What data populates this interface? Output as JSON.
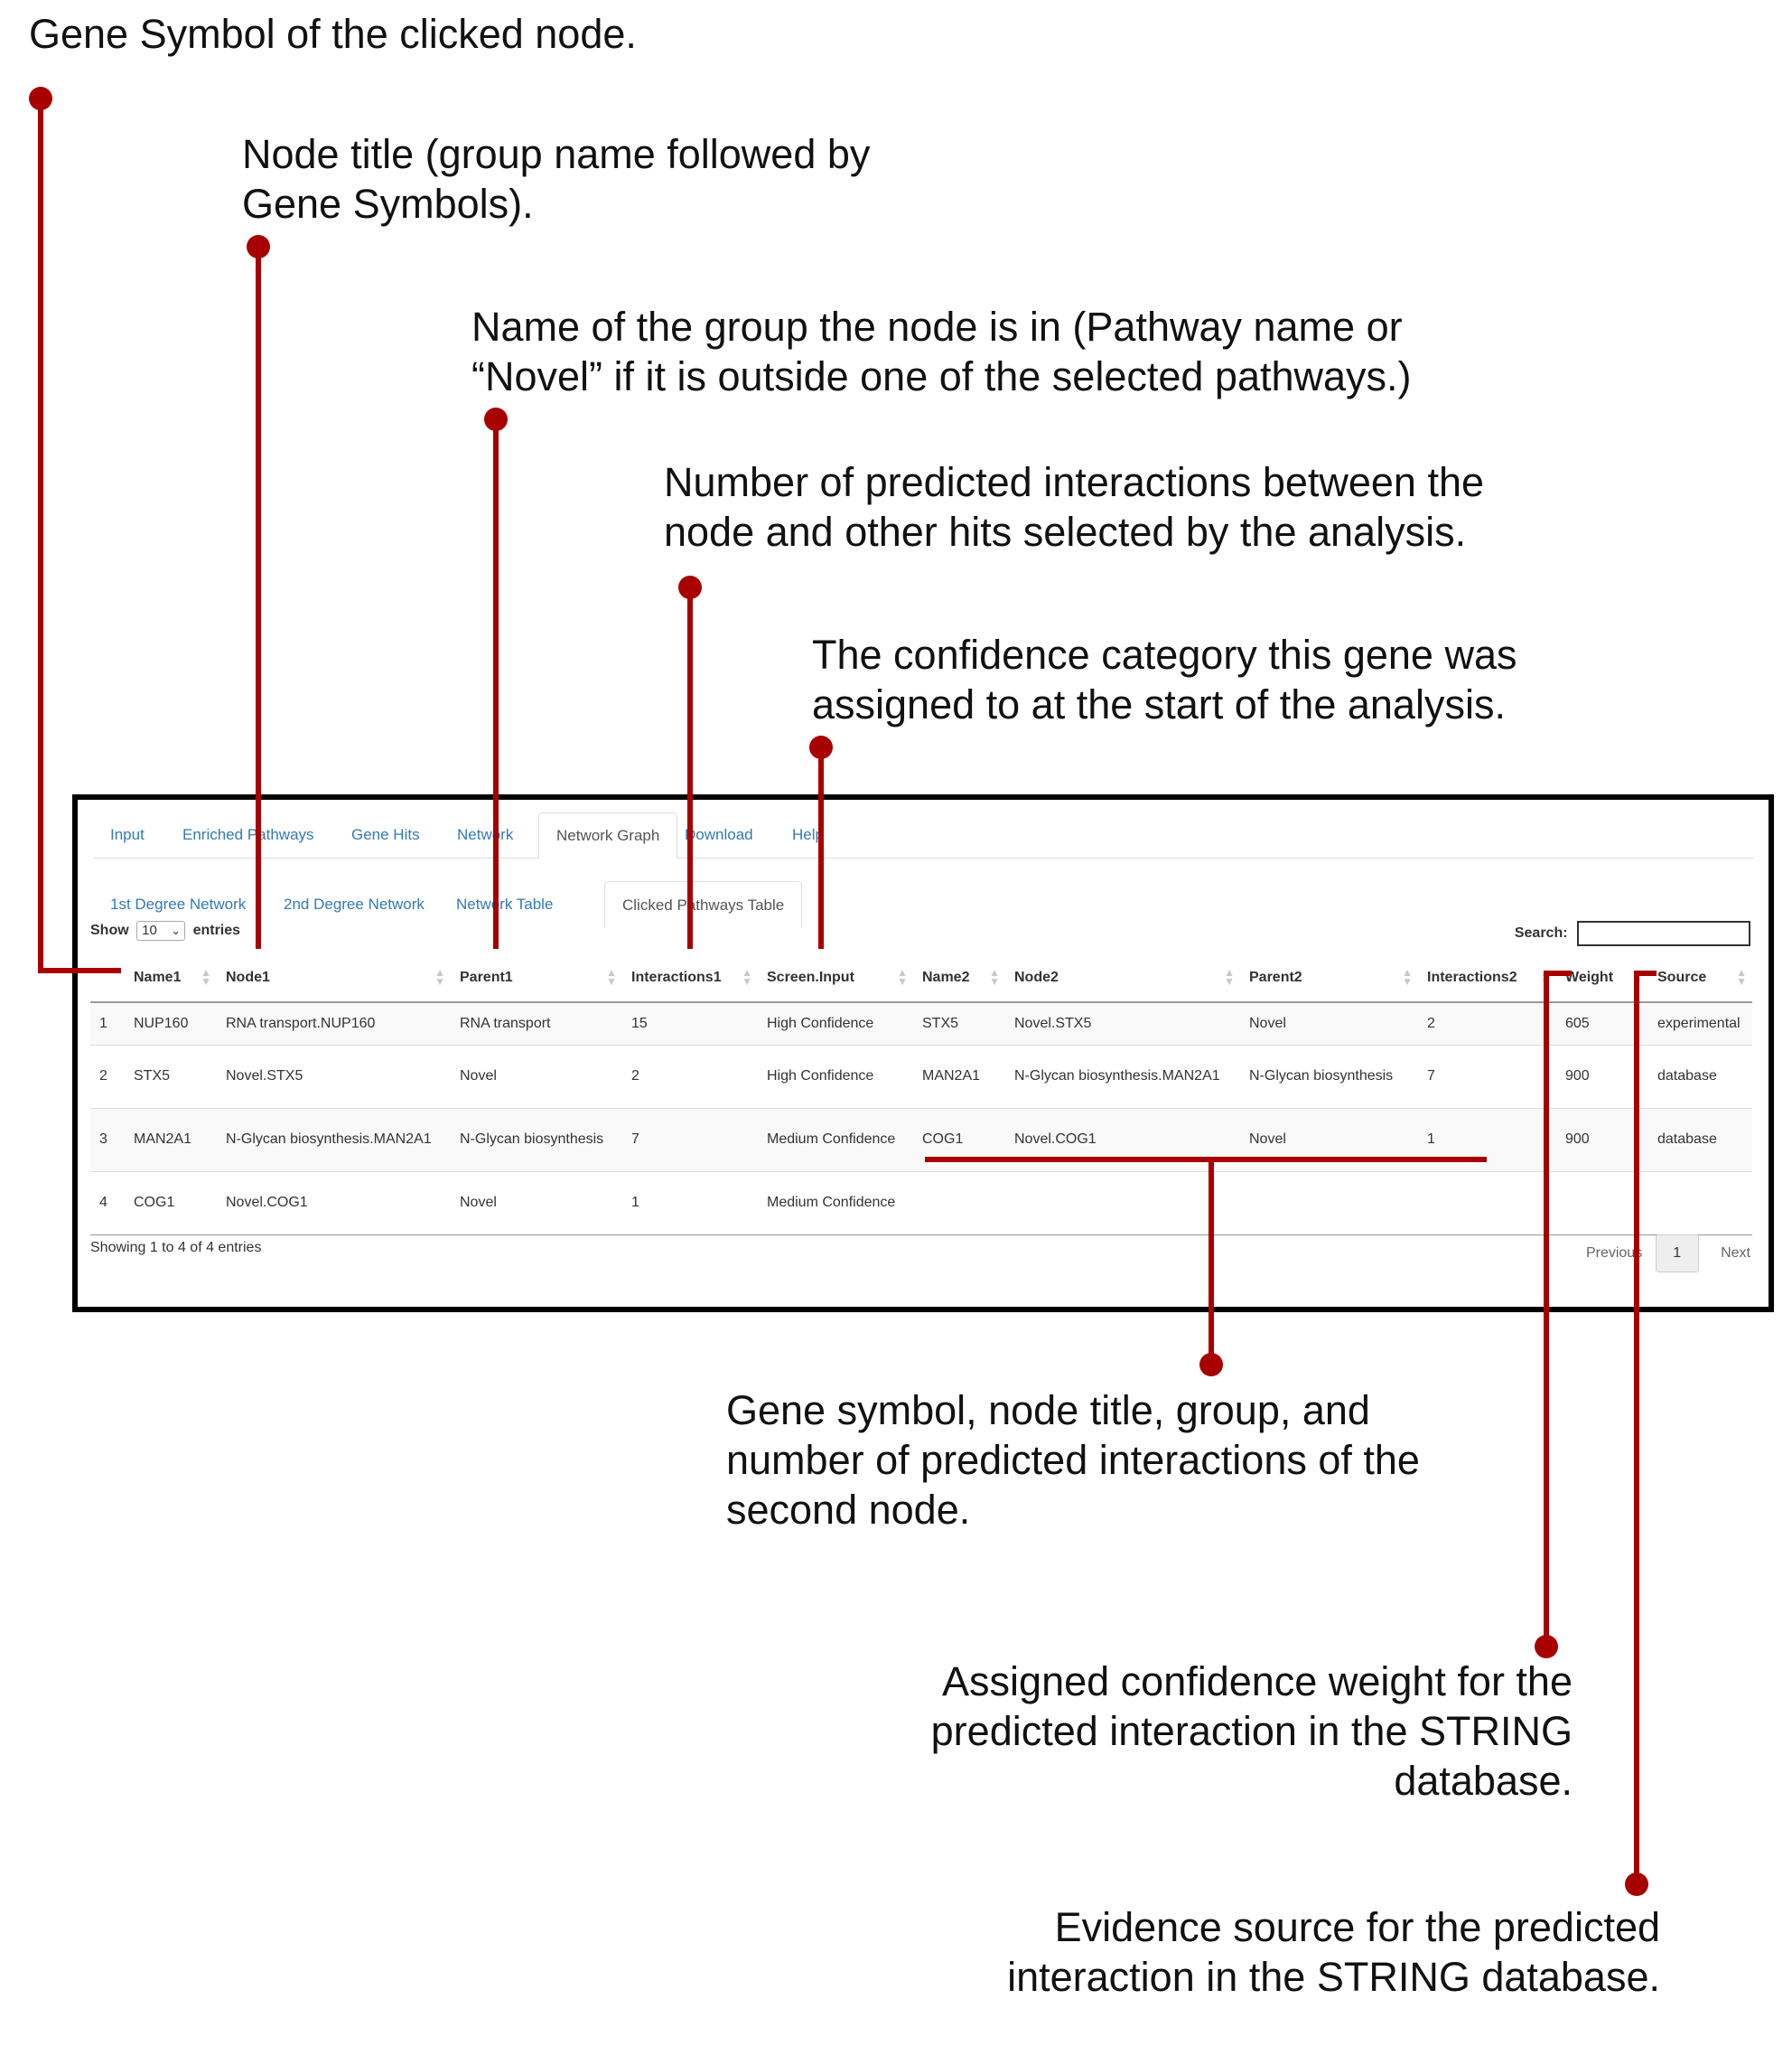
{
  "annotations": {
    "gene_symbol": "Gene Symbol of the clicked node.",
    "node_title": [
      "Node title (group name followed by",
      "Gene Symbols)."
    ],
    "group_name": [
      "Name of the group the node is in (Pathway name or",
      "“Novel” if it is outside one of the selected pathways.)"
    ],
    "num_interactions": [
      "Number of predicted interactions between the",
      "node and other hits selected by the analysis."
    ],
    "confidence_category": [
      "The confidence category this gene was",
      "assigned to at the start of the analysis."
    ],
    "second_node": [
      "Gene symbol, node title, group, and",
      "number of predicted interactions of the",
      "second node."
    ],
    "weight": [
      "Assigned confidence weight for the",
      "predicted interaction in the STRING",
      "database."
    ],
    "source": [
      "Evidence source for the predicted",
      "interaction in the STRING database."
    ]
  },
  "colors": {
    "leader": "#a80000",
    "link": "#337ab7",
    "text": "#333333"
  },
  "tabs": [
    "Input",
    "Enriched Pathways",
    "Gene Hits",
    "Network",
    "Network Graph",
    "Download",
    "Help"
  ],
  "active_tab": "Network Graph",
  "subtabs": [
    "1st Degree Network",
    "2nd Degree Network",
    "Network Table",
    "Clicked Pathways Table"
  ],
  "active_subtab": "Clicked Pathways Table",
  "length": {
    "show": "Show",
    "value": "10",
    "entries": "entries"
  },
  "search_label": "Search:",
  "columns": [
    "",
    "Name1",
    "Node1",
    "Parent1",
    "Interactions1",
    "Screen.Input",
    "Name2",
    "Node2",
    "Parent2",
    "Interactions2",
    "Weight",
    "Source"
  ],
  "rows": [
    [
      "1",
      "NUP160",
      "RNA transport.NUP160",
      "RNA transport",
      "15",
      "High Confidence",
      "STX5",
      "Novel.STX5",
      "Novel",
      "2",
      "605",
      "experimental"
    ],
    [
      "2",
      "STX5",
      "Novel.STX5",
      "Novel",
      "2",
      "High Confidence",
      "MAN2A1",
      "N-Glycan biosynthesis.MAN2A1",
      "N-Glycan biosynthesis",
      "7",
      "900",
      "database"
    ],
    [
      "3",
      "MAN2A1",
      "N-Glycan biosynthesis.MAN2A1",
      "N-Glycan biosynthesis",
      "7",
      "Medium Confidence",
      "COG1",
      "Novel.COG1",
      "Novel",
      "1",
      "900",
      "database"
    ],
    [
      "4",
      "COG1",
      "Novel.COG1",
      "Novel",
      "1",
      "Medium Confidence",
      "",
      "",
      "",
      "",
      "",
      ""
    ]
  ],
  "info": "Showing 1 to 4 of 4 entries",
  "pagination": {
    "previous": "Previous",
    "page": "1",
    "next": "Next"
  }
}
